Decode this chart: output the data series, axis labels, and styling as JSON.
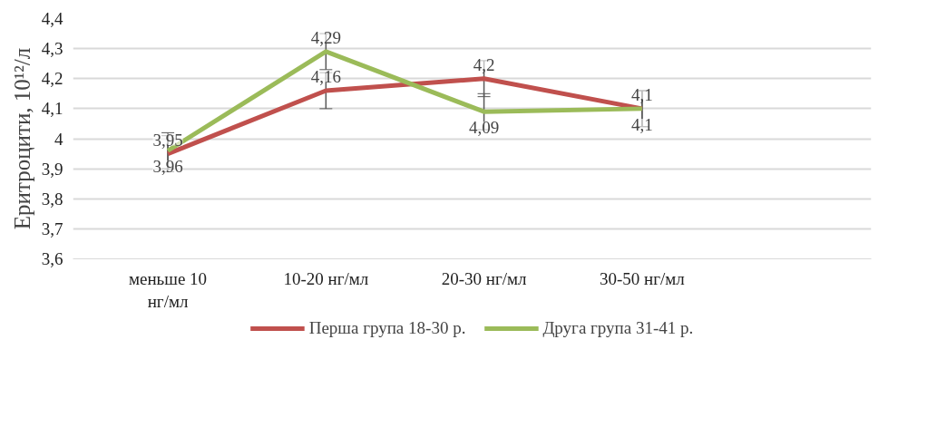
{
  "chart_data": {
    "type": "line",
    "ylabel": "Еритроцити, 10¹²/л",
    "categories": [
      "меньше 10 нг/мл",
      "10-20 нг/мл",
      "20-30 нг/мл",
      "30-50 нг/мл"
    ],
    "series": [
      {
        "name": "Перша група 18-30 р.",
        "color": "#c0504d",
        "values": [
          3.95,
          4.16,
          4.2,
          4.1
        ],
        "value_labels": [
          "3,95",
          "4,16",
          "4,2",
          "4,1"
        ],
        "errors": [
          0.06,
          0.06,
          0.06,
          0.06
        ]
      },
      {
        "name": "Друга група 31-41 р.",
        "color": "#9bbb59",
        "values": [
          3.96,
          4.29,
          4.09,
          4.1
        ],
        "value_labels": [
          "3,96",
          "4,29",
          "4,09",
          "4,1"
        ],
        "errors": [
          0.06,
          0.06,
          0.06,
          0.06
        ]
      }
    ],
    "ylim": [
      3.6,
      4.4
    ],
    "yticks": [
      {
        "value": 3.6,
        "label": "3,6"
      },
      {
        "value": 3.7,
        "label": "3,7"
      },
      {
        "value": 3.8,
        "label": "3,8"
      },
      {
        "value": 3.9,
        "label": "3,9"
      },
      {
        "value": 4,
        "label": "4"
      },
      {
        "value": 4.1,
        "label": "4,1"
      },
      {
        "value": 4.2,
        "label": "4,2"
      },
      {
        "value": 4.3,
        "label": "4,3"
      },
      {
        "value": 4.4,
        "label": "4,4"
      }
    ],
    "grid": "y",
    "legend": "bottom",
    "data_labels": true,
    "marker": "none",
    "line_style": "solid"
  }
}
